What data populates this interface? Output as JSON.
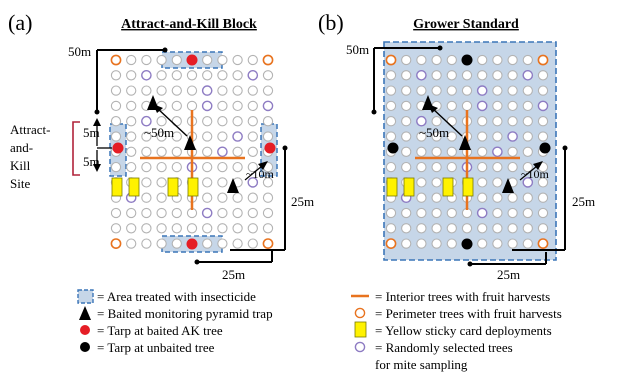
{
  "colors": {
    "grid_gray": "#b3b3b3",
    "perimeter_orange": "#e8731f",
    "interior_orange": "#e8731f",
    "random_purple": "#8e7cc3",
    "tarp_red": "#e51d25",
    "tarp_black": "#000000",
    "sticky_yellow": "#fff200",
    "sticky_stroke": "#7a7a00",
    "area_fill": "#c6d6e8",
    "area_border": "#3c76b8",
    "site_bracket": "#b0233a"
  },
  "panel_a": {
    "label": "(a)",
    "title": "Attract-and-Kill Block",
    "dim_top": "50m",
    "dim_diag": "~50m",
    "dim_small": "~10m",
    "dim_right": "25m",
    "dim_bottom": "25m",
    "dim_5m_upper": "5m",
    "dim_5m_lower": "5m",
    "site_label_lines": [
      "Attract-",
      "and-",
      "Kill",
      "Site"
    ]
  },
  "panel_b": {
    "label": "(b)",
    "title": "Grower Standard",
    "dim_top": "50m",
    "dim_diag": "~50m",
    "dim_small": "~10m",
    "dim_right": "25m",
    "dim_bottom": "25m"
  },
  "legend": {
    "area": "= Area treated with insecticide",
    "pyramid": "= Baited monitoring pyramid trap",
    "tarp_baited": "= Tarp at baited AK tree",
    "tarp_unbaited": "= Tarp at unbaited tree",
    "interior": "= Interior trees with fruit harvests",
    "perimeter": "= Perimeter trees with fruit harvests",
    "sticky": "= Yellow sticky card deployments",
    "random_line1": "= Randomly selected trees",
    "random_line2": "for mite sampling"
  }
}
